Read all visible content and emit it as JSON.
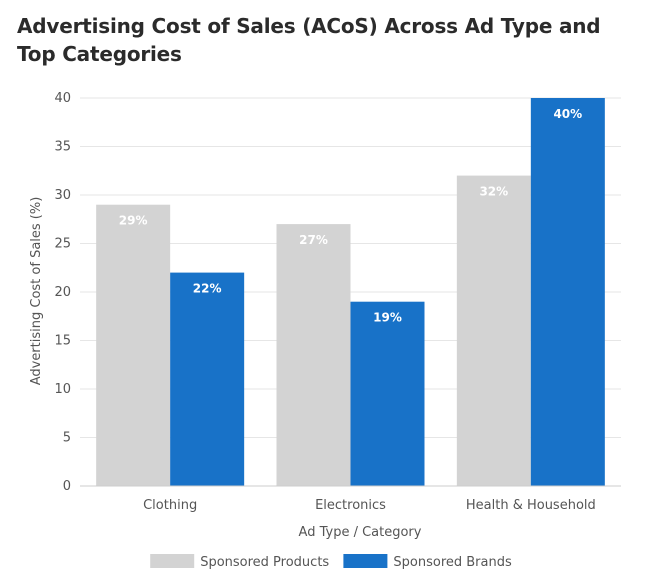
{
  "chart_data": {
    "type": "bar",
    "title": "Advertising Cost of Sales (ACoS) Across Ad Type and Top Categories",
    "xlabel": "Ad Type / Category",
    "ylabel": "Advertising Cost of Sales (%)",
    "categories": [
      "Clothing",
      "Electronics",
      "Health & Household"
    ],
    "series": [
      {
        "name": "Sponsored Products",
        "values": [
          29,
          27,
          32
        ],
        "labels": [
          "29%",
          "27%",
          "32%"
        ],
        "color": "#d3d3d3"
      },
      {
        "name": "Sponsored Brands",
        "values": [
          22,
          19,
          40
        ],
        "labels": [
          "22%",
          "19%",
          "40%"
        ],
        "color": "#1872c8"
      }
    ],
    "ylim": [
      0,
      40
    ],
    "yticks": [
      0,
      5,
      10,
      15,
      20,
      25,
      30,
      35,
      40
    ],
    "grid": true,
    "legend_position": "bottom"
  }
}
